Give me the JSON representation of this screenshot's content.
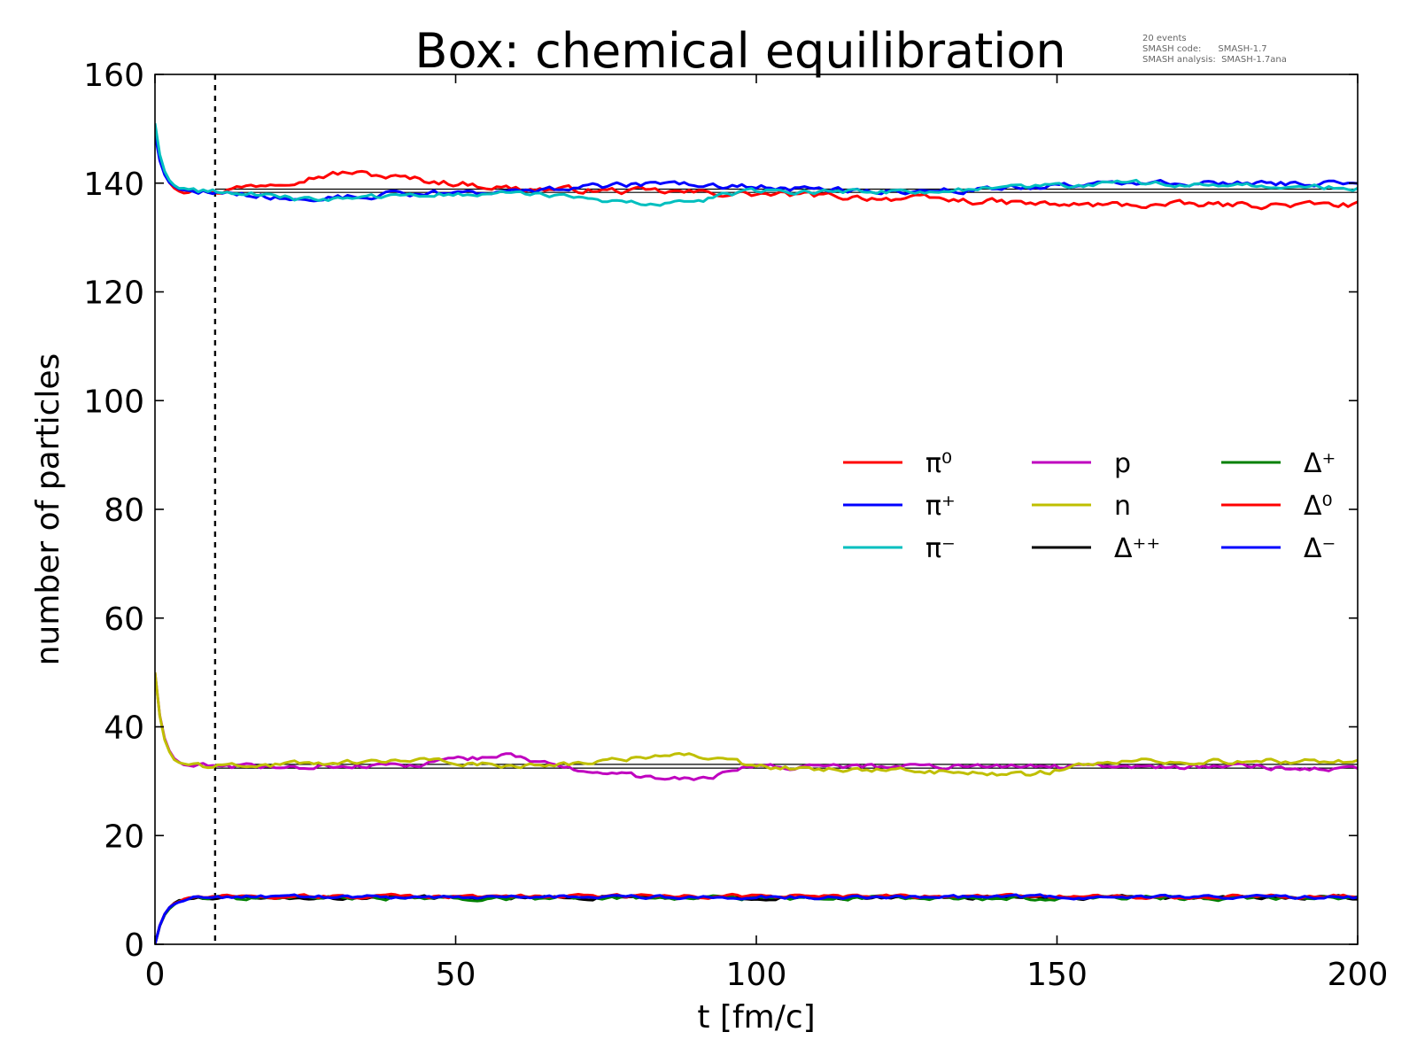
{
  "chart_data": {
    "type": "line",
    "title": "Box: chemical equilibration",
    "xlabel": "t [fm/c]",
    "ylabel": "number of particles",
    "xlim": [
      0,
      200
    ],
    "ylim": [
      0,
      160
    ],
    "xticks": [
      0,
      50,
      100,
      150,
      200
    ],
    "yticks": [
      0,
      20,
      40,
      60,
      80,
      100,
      120,
      140,
      160
    ],
    "xtick_labels": [
      "0",
      "50",
      "100",
      "150",
      "200"
    ],
    "ytick_labels": [
      "0",
      "20",
      "40",
      "60",
      "80",
      "100",
      "120",
      "140",
      "160"
    ],
    "grid": false,
    "vline": {
      "x": 10,
      "style": "dashed",
      "color": "#000000"
    },
    "equilibrium_lines": [
      {
        "y": 138.3,
        "color": "#000000"
      },
      {
        "y": 138.9,
        "color": "#000000"
      },
      {
        "y": 32.4,
        "color": "#000000"
      },
      {
        "y": 33.1,
        "color": "#000000"
      },
      {
        "y": 8.6,
        "color": "#000000"
      }
    ],
    "legend": {
      "placement": "center-right",
      "columns": 3
    },
    "series": [
      {
        "name": "π⁰",
        "color": "#ff0000",
        "group": "pion",
        "start": 150,
        "equilibrium": 138.5,
        "noise": 1.1,
        "offset": [
          [
            10,
            0
          ],
          [
            25,
            2.5
          ],
          [
            32,
            3.5
          ],
          [
            45,
            2
          ],
          [
            60,
            0.5
          ],
          [
            100,
            -0.5
          ],
          [
            130,
            -1.5
          ],
          [
            150,
            -2.5
          ],
          [
            170,
            -2.5
          ],
          [
            200,
            -2.5
          ]
        ]
      },
      {
        "name": "π⁺",
        "color": "#0000ff",
        "group": "pion",
        "start": 149,
        "equilibrium": 138.5,
        "noise": 1.0,
        "offset": [
          [
            10,
            0
          ],
          [
            25,
            -1.5
          ],
          [
            40,
            -0.5
          ],
          [
            60,
            0
          ],
          [
            85,
            1.5
          ],
          [
            110,
            0.3
          ],
          [
            130,
            0
          ],
          [
            160,
            1.5
          ],
          [
            200,
            1.5
          ]
        ]
      },
      {
        "name": "π⁻",
        "color": "#00bfbf",
        "group": "pion",
        "start": 151,
        "equilibrium": 138.5,
        "noise": 0.9,
        "offset": [
          [
            10,
            0
          ],
          [
            25,
            -1.5
          ],
          [
            40,
            -1
          ],
          [
            60,
            0
          ],
          [
            75,
            -2
          ],
          [
            85,
            -2.5
          ],
          [
            100,
            0
          ],
          [
            130,
            0
          ],
          [
            160,
            1.5
          ],
          [
            200,
            0.5
          ]
        ]
      },
      {
        "name": "p",
        "color": "#bf00bf",
        "group": "nucleon",
        "start": 50,
        "equilibrium": 32.7,
        "noise": 0.9,
        "offset": [
          [
            10,
            0
          ],
          [
            40,
            0
          ],
          [
            58,
            2
          ],
          [
            75,
            -1.5
          ],
          [
            90,
            -2.5
          ],
          [
            100,
            0
          ],
          [
            150,
            0
          ],
          [
            180,
            0
          ],
          [
            200,
            -0.5
          ]
        ]
      },
      {
        "name": "n",
        "color": "#bfbf00",
        "group": "nucleon",
        "start": 50,
        "equilibrium": 32.7,
        "noise": 0.9,
        "offset": [
          [
            10,
            0
          ],
          [
            45,
            1
          ],
          [
            65,
            0
          ],
          [
            80,
            1.5
          ],
          [
            90,
            2
          ],
          [
            100,
            0
          ],
          [
            145,
            -1.5
          ],
          [
            160,
            1
          ],
          [
            200,
            1
          ]
        ]
      },
      {
        "name": "Δ⁺⁺",
        "color": "#000000",
        "group": "delta",
        "start": 0,
        "equilibrium": 8.6,
        "noise": 0.6,
        "offset": [
          [
            0,
            0
          ],
          [
            200,
            0
          ]
        ]
      },
      {
        "name": "Δ⁺",
        "color": "#008000",
        "group": "delta",
        "start": 0,
        "equilibrium": 8.5,
        "noise": 0.7,
        "offset": [
          [
            0,
            0
          ],
          [
            200,
            0
          ]
        ]
      },
      {
        "name": "Δ⁰",
        "color": "#ff0000",
        "group": "delta",
        "start": 0,
        "equilibrium": 8.8,
        "noise": 0.6,
        "offset": [
          [
            0,
            0
          ],
          [
            200,
            0
          ]
        ]
      },
      {
        "name": "Δ⁻",
        "color": "#0000ff",
        "group": "delta",
        "start": 0,
        "equilibrium": 8.7,
        "noise": 0.6,
        "offset": [
          [
            0,
            0
          ],
          [
            200,
            0
          ]
        ]
      }
    ],
    "annotation": {
      "lines": [
        "20 events",
        "SMASH code:      SMASH-1.7",
        "SMASH analysis:  SMASH-1.7ana"
      ]
    }
  }
}
